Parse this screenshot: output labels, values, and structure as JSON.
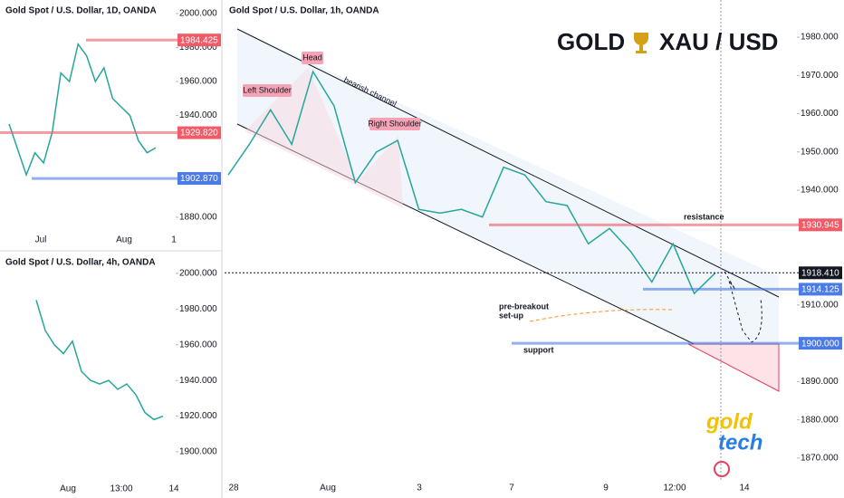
{
  "chart_data": [
    {
      "type": "line",
      "title": "Gold Spot / U.S. Dollar, 1h, OANDA",
      "heading": [
        "GOLD",
        "XAU / USD"
      ],
      "annotations": [
        "Left Shoulder",
        "Head",
        "Right Shoulder",
        "bearish channel",
        "resistance",
        "pre-breakout",
        "set-up",
        "support"
      ],
      "logo": [
        "gold",
        "tech"
      ],
      "x_labels": [
        "28",
        "Aug",
        "3",
        "7",
        "9",
        "12:00",
        "14"
      ],
      "values": [
        1944,
        1952,
        1961,
        1952,
        1971,
        1962,
        1942,
        1950,
        1953,
        1935,
        1934,
        1935,
        1933,
        1946,
        1944,
        1937,
        1936,
        1926,
        1930,
        1924,
        1916,
        1926,
        1913,
        1918.41
      ],
      "color": "#26a69a",
      "ylim": [
        1864.3,
        1989.7
      ],
      "yticks": [
        {
          "value": 1870,
          "label": "1870.000"
        },
        {
          "value": 1880,
          "label": "1880.000"
        },
        {
          "value": 1890,
          "label": "1890.000"
        },
        {
          "value": 1910,
          "label": "1910.000"
        },
        {
          "value": 1940,
          "label": "1940.000"
        },
        {
          "value": 1950,
          "label": "1950.000"
        },
        {
          "value": 1960,
          "label": "1960.000"
        },
        {
          "value": 1970,
          "label": "1970.000"
        },
        {
          "value": 1980,
          "label": "1980.000"
        }
      ],
      "levels": [
        {
          "value": 1930.945,
          "color": "#f05b67"
        },
        {
          "value": 1918.41,
          "label": "1918.410",
          "color": "#131722"
        },
        {
          "value": 1914.125,
          "color": "#4b7be5"
        },
        {
          "value": 1900,
          "label": "1900.000",
          "color": "#4b7be5"
        }
      ]
    },
    {
      "type": "line",
      "title": "Gold Spot / U.S. Dollar, 1D, OANDA",
      "x_labels": [
        "Jul",
        "Aug",
        "1"
      ],
      "values": [
        1935,
        1920,
        1905,
        1918,
        1912,
        1930,
        1965,
        1960,
        1982,
        1975,
        1960,
        1968,
        1950,
        1945,
        1940,
        1925,
        1918,
        1921
      ],
      "color": "#26a69a",
      "ylim": [
        1861.3,
        2008
      ],
      "yticks": [
        {
          "value": 1880,
          "label": "1880.000"
        },
        {
          "value": 1940,
          "label": "1940.000"
        },
        {
          "value": 1960,
          "label": "1960.000"
        },
        {
          "value": 1980,
          "label": "1980.000"
        },
        {
          "value": 2000,
          "label": "2000.000"
        }
      ],
      "levels": [
        {
          "value": 1984.425,
          "color": "#f05b67"
        },
        {
          "value": 1929.82,
          "label": "1929.820",
          "color": "#f05b67"
        },
        {
          "value": 1902.87,
          "label": "1902.870",
          "color": "#4b7be5"
        }
      ]
    },
    {
      "type": "line",
      "title": "Gold Spot / U.S. Dollar, 4h, OANDA",
      "x_labels": [
        "Aug",
        "13:00",
        "14"
      ],
      "values": [
        1985,
        1968,
        1960,
        1955,
        1962,
        1945,
        1940,
        1938,
        1940,
        1935,
        1938,
        1932,
        1922,
        1918,
        1920
      ],
      "color": "#26a69a",
      "ylim": [
        1889.3,
        2002
      ],
      "yticks": [
        {
          "value": 1900,
          "label": "1900.000"
        },
        {
          "value": 1920,
          "label": "1920.000"
        },
        {
          "value": 1940,
          "label": "1940.000"
        },
        {
          "value": 1960,
          "label": "1960.000"
        },
        {
          "value": 1980,
          "label": "1980.000"
        },
        {
          "value": 2000,
          "label": "2000.000"
        }
      ],
      "levels": []
    }
  ]
}
